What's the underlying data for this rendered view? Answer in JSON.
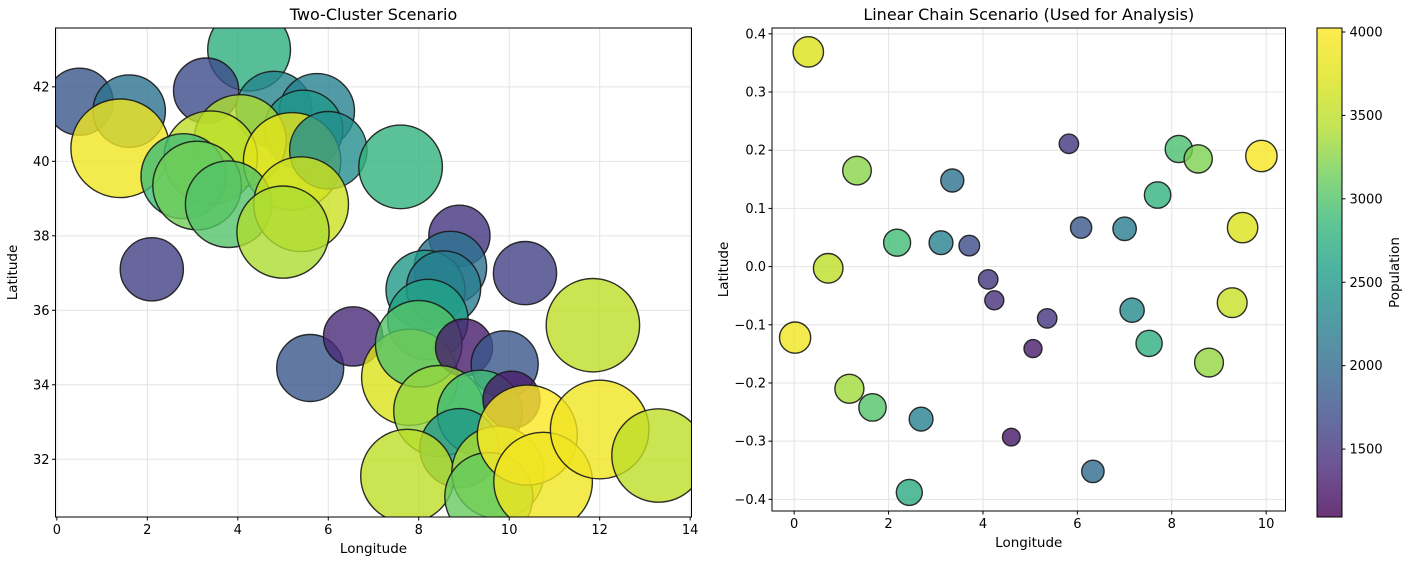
{
  "figure": {
    "background": "#ffffff",
    "alpha": 0.8,
    "edge_color": "#1a1a1a",
    "grid_color": "#e4e4e4"
  },
  "colorbar": {
    "label": "Population",
    "colormap": "viridis",
    "vmin": 1093,
    "vmax": 4024,
    "ticks": [
      1500,
      2000,
      2500,
      3000,
      3500,
      4000
    ],
    "tick_labels": [
      "1500",
      "2000",
      "2500",
      "3000",
      "3500",
      "4000"
    ]
  },
  "chart_data": [
    {
      "type": "scatter",
      "title": "Two-Cluster Scenario",
      "xlabel": "Longitude",
      "ylabel": "Latitude",
      "xlim": [
        -0.03,
        14.03
      ],
      "ylim": [
        30.45,
        43.58
      ],
      "xticks": [
        0,
        2,
        4,
        6,
        8,
        10,
        12,
        14
      ],
      "xtick_labels": [
        "0",
        "2",
        "4",
        "6",
        "8",
        "10",
        "12",
        "14"
      ],
      "yticks": [
        32,
        34,
        36,
        38,
        40,
        42
      ],
      "ytick_labels": [
        "32",
        "34",
        "36",
        "38",
        "40",
        "42"
      ],
      "grid": true,
      "legend": false,
      "marker_scale": 0.79,
      "color_field": "population",
      "points": [
        [
          0.5,
          41.6,
          1800
        ],
        [
          1.6,
          41.35,
          2100
        ],
        [
          1.4,
          40.35,
          3900
        ],
        [
          4.25,
          43.0,
          2750
        ],
        [
          3.3,
          41.9,
          1700
        ],
        [
          4.8,
          41.4,
          2300
        ],
        [
          5.75,
          41.35,
          2250
        ],
        [
          5.45,
          40.85,
          2500
        ],
        [
          4.05,
          40.55,
          3400
        ],
        [
          3.4,
          40.1,
          3500
        ],
        [
          2.8,
          39.6,
          2900
        ],
        [
          3.1,
          39.35,
          3150
        ],
        [
          5.2,
          40.0,
          3800
        ],
        [
          6.0,
          40.3,
          2400
        ],
        [
          3.8,
          38.85,
          3000
        ],
        [
          5.4,
          38.85,
          3600
        ],
        [
          5.0,
          38.1,
          3400
        ],
        [
          2.1,
          37.1,
          1600
        ],
        [
          7.6,
          39.85,
          2800
        ],
        [
          8.9,
          38.0,
          1500
        ],
        [
          8.7,
          37.15,
          2100
        ],
        [
          10.35,
          37.0,
          1600
        ],
        [
          8.15,
          36.55,
          2500
        ],
        [
          8.55,
          36.6,
          2200
        ],
        [
          5.6,
          34.45,
          1800
        ],
        [
          6.55,
          35.3,
          1400
        ],
        [
          8.2,
          35.75,
          2600
        ],
        [
          7.8,
          34.2,
          3700
        ],
        [
          8.0,
          35.1,
          3000
        ],
        [
          9.0,
          35.0,
          1300
        ],
        [
          9.9,
          34.55,
          1800
        ],
        [
          11.85,
          35.6,
          3500
        ],
        [
          8.45,
          33.3,
          3300
        ],
        [
          9.35,
          33.25,
          2900
        ],
        [
          10.05,
          33.6,
          1300
        ],
        [
          8.9,
          32.3,
          2500
        ],
        [
          7.75,
          31.55,
          3500
        ],
        [
          9.75,
          31.65,
          3400
        ],
        [
          9.55,
          31.0,
          3100
        ],
        [
          10.4,
          32.65,
          4000
        ],
        [
          10.75,
          31.4,
          3900
        ],
        [
          12.0,
          32.8,
          3900
        ],
        [
          13.3,
          32.1,
          3500
        ]
      ]
    },
    {
      "type": "scatter",
      "title": "Linear Chain Scenario (Used for Analysis)",
      "xlabel": "Longitude",
      "ylabel": "Latitude",
      "xlim": [
        -0.47,
        10.41
      ],
      "ylim": [
        -0.42,
        0.41
      ],
      "xticks": [
        0,
        2,
        4,
        6,
        8,
        10
      ],
      "xtick_labels": [
        "0",
        "2",
        "4",
        "6",
        "8",
        "10"
      ],
      "yticks": [
        -0.4,
        -0.3,
        -0.2,
        -0.1,
        0.0,
        0.1,
        0.2,
        0.3,
        0.4
      ],
      "ytick_labels": [
        "−0.4",
        "−0.3",
        "−0.2",
        "−0.1",
        "0.0",
        "0.1",
        "0.2",
        "0.3",
        "0.4"
      ],
      "grid": true,
      "legend": false,
      "marker_scale": 0.25,
      "color_field": "population",
      "points": [
        [
          0.3,
          0.369,
          3700
        ],
        [
          1.33,
          0.165,
          3250
        ],
        [
          3.35,
          0.148,
          2100
        ],
        [
          5.82,
          0.211,
          1500
        ],
        [
          8.15,
          0.202,
          2950
        ],
        [
          8.56,
          0.185,
          3200
        ],
        [
          9.9,
          0.19,
          3950
        ],
        [
          7.7,
          0.123,
          2800
        ],
        [
          6.08,
          0.067,
          1800
        ],
        [
          7.0,
          0.065,
          2200
        ],
        [
          9.5,
          0.067,
          3700
        ],
        [
          2.18,
          0.041,
          2900
        ],
        [
          3.11,
          0.041,
          2250
        ],
        [
          3.71,
          0.036,
          1700
        ],
        [
          0.72,
          -0.003,
          3500
        ],
        [
          4.11,
          -0.022,
          1500
        ],
        [
          4.24,
          -0.058,
          1450
        ],
        [
          9.28,
          -0.062,
          3550
        ],
        [
          7.16,
          -0.075,
          2350
        ],
        [
          5.36,
          -0.089,
          1500
        ],
        [
          0.02,
          -0.122,
          3900
        ],
        [
          7.52,
          -0.132,
          2750
        ],
        [
          5.06,
          -0.141,
          1300
        ],
        [
          8.79,
          -0.165,
          3300
        ],
        [
          1.17,
          -0.21,
          3350
        ],
        [
          1.66,
          -0.242,
          3000
        ],
        [
          2.69,
          -0.262,
          2250
        ],
        [
          4.6,
          -0.293,
          1250
        ],
        [
          6.33,
          -0.352,
          2000
        ],
        [
          2.44,
          -0.388,
          2700
        ]
      ]
    }
  ]
}
